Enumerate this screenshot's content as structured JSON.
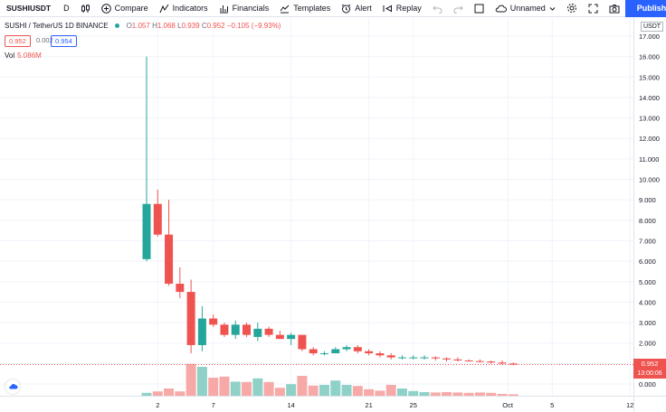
{
  "toolbar": {
    "symbol": "SUSHIUSDT",
    "interval": "D",
    "compare_label": "Compare",
    "indicators_label": "Indicators",
    "financials_label": "Financials",
    "templates_label": "Templates",
    "alert_label": "Alert",
    "replay_label": "Replay",
    "layout_name": "Unnamed",
    "publish_label": "Publish"
  },
  "legend": {
    "title": "SUSHI / TetherUS  1D  BINANCE",
    "o_label": "O",
    "o_value": "1.057",
    "h_label": "H",
    "h_value": "1.068",
    "l_label": "L",
    "l_value": "0.939",
    "c_label": "C",
    "c_value": "0.952",
    "change": "−0.105 (−9.93%)",
    "sell_price": "0.952",
    "spread": "0.002",
    "buy_price": "0.954",
    "vol_label": "Vol",
    "vol_value": "5.086M"
  },
  "price_axis": {
    "currency": "USDT",
    "current_price": "0.952",
    "countdown": "13:00:06"
  },
  "colors": {
    "up": "#26a69a",
    "down": "#ef5350",
    "up_volume": "#8fd1c7",
    "down_volume": "#f7a9a7",
    "grid": "#f0f3fa",
    "accent": "#2962ff"
  },
  "chart_data": {
    "type": "candlestick",
    "y_ticks": [
      0,
      1,
      2,
      3,
      4,
      5,
      6,
      7,
      8,
      9,
      10,
      11,
      12,
      13,
      14,
      15,
      16,
      17
    ],
    "y_tick_labels": [
      "0.000",
      "1.000",
      "2.000",
      "3.000",
      "4.000",
      "5.000",
      "6.000",
      "7.000",
      "8.000",
      "9.000",
      "10.000",
      "11.000",
      "12.000",
      "13.000",
      "14.000",
      "15.000",
      "16.000",
      "17.000"
    ],
    "ylim": [
      -0.6,
      17.5
    ],
    "x_ticks": [
      {
        "label": "2",
        "index": 2
      },
      {
        "label": "7",
        "index": 7
      },
      {
        "label": "14",
        "index": 14
      },
      {
        "label": "21",
        "index": 21
      },
      {
        "label": "25",
        "index": 25
      },
      {
        "label": "Oct",
        "index": 33.5
      },
      {
        "label": "5",
        "index": 37.5
      },
      {
        "label": "12",
        "index": 44.5
      }
    ],
    "candles": [
      {
        "i": 1,
        "o": 6.1,
        "h": 16.0,
        "l": 6.0,
        "c": 8.8,
        "v": 0.8
      },
      {
        "i": 2,
        "o": 8.8,
        "h": 9.5,
        "l": 7.2,
        "c": 7.3,
        "v": 1.2
      },
      {
        "i": 3,
        "o": 7.3,
        "h": 9.0,
        "l": 4.8,
        "c": 4.9,
        "v": 2.0
      },
      {
        "i": 4,
        "o": 4.9,
        "h": 5.7,
        "l": 4.2,
        "c": 4.5,
        "v": 1.2
      },
      {
        "i": 5,
        "o": 4.5,
        "h": 5.1,
        "l": 1.5,
        "c": 1.9,
        "v": 8.8
      },
      {
        "i": 6,
        "o": 1.9,
        "h": 3.8,
        "l": 1.6,
        "c": 3.2,
        "v": 8.0
      },
      {
        "i": 7,
        "o": 3.2,
        "h": 3.4,
        "l": 2.8,
        "c": 2.9,
        "v": 5.0
      },
      {
        "i": 8,
        "o": 2.9,
        "h": 3.0,
        "l": 2.3,
        "c": 2.4,
        "v": 5.3
      },
      {
        "i": 9,
        "o": 2.4,
        "h": 3.1,
        "l": 2.2,
        "c": 2.9,
        "v": 3.9
      },
      {
        "i": 10,
        "o": 2.9,
        "h": 3.0,
        "l": 2.3,
        "c": 2.4,
        "v": 3.8
      },
      {
        "i": 11,
        "o": 2.3,
        "h": 3.0,
        "l": 2.1,
        "c": 2.7,
        "v": 4.8
      },
      {
        "i": 12,
        "o": 2.7,
        "h": 2.8,
        "l": 2.3,
        "c": 2.4,
        "v": 3.8
      },
      {
        "i": 13,
        "o": 2.4,
        "h": 2.6,
        "l": 2.2,
        "c": 2.2,
        "v": 2.2
      },
      {
        "i": 14,
        "o": 2.2,
        "h": 2.5,
        "l": 1.9,
        "c": 2.4,
        "v": 3.2
      },
      {
        "i": 15,
        "o": 2.4,
        "h": 2.4,
        "l": 1.6,
        "c": 1.7,
        "v": 5.5
      },
      {
        "i": 16,
        "o": 1.7,
        "h": 1.8,
        "l": 1.4,
        "c": 1.5,
        "v": 2.8
      },
      {
        "i": 17,
        "o": 1.5,
        "h": 1.6,
        "l": 1.4,
        "c": 1.5,
        "v": 3.0
      },
      {
        "i": 18,
        "o": 1.5,
        "h": 1.8,
        "l": 1.5,
        "c": 1.7,
        "v": 4.2
      },
      {
        "i": 19,
        "o": 1.7,
        "h": 1.9,
        "l": 1.6,
        "c": 1.8,
        "v": 3.0
      },
      {
        "i": 20,
        "o": 1.8,
        "h": 1.9,
        "l": 1.5,
        "c": 1.6,
        "v": 2.7
      },
      {
        "i": 21,
        "o": 1.6,
        "h": 1.7,
        "l": 1.4,
        "c": 1.5,
        "v": 1.8
      },
      {
        "i": 22,
        "o": 1.5,
        "h": 1.6,
        "l": 1.3,
        "c": 1.4,
        "v": 1.4
      },
      {
        "i": 23,
        "o": 1.4,
        "h": 1.5,
        "l": 1.2,
        "c": 1.3,
        "v": 3.0
      },
      {
        "i": 24,
        "o": 1.3,
        "h": 1.4,
        "l": 1.2,
        "c": 1.3,
        "v": 2.0
      },
      {
        "i": 25,
        "o": 1.3,
        "h": 1.4,
        "l": 1.2,
        "c": 1.3,
        "v": 1.3
      },
      {
        "i": 26,
        "o": 1.3,
        "h": 1.4,
        "l": 1.2,
        "c": 1.3,
        "v": 1.0
      },
      {
        "i": 27,
        "o": 1.3,
        "h": 1.35,
        "l": 1.15,
        "c": 1.25,
        "v": 0.9
      },
      {
        "i": 28,
        "o": 1.25,
        "h": 1.3,
        "l": 1.1,
        "c": 1.2,
        "v": 1.0
      },
      {
        "i": 29,
        "o": 1.2,
        "h": 1.3,
        "l": 1.1,
        "c": 1.15,
        "v": 0.9
      },
      {
        "i": 30,
        "o": 1.15,
        "h": 1.2,
        "l": 1.1,
        "c": 1.12,
        "v": 0.8
      },
      {
        "i": 31,
        "o": 1.12,
        "h": 1.2,
        "l": 1.05,
        "c": 1.1,
        "v": 0.9
      },
      {
        "i": 32,
        "o": 1.1,
        "h": 1.15,
        "l": 1.0,
        "c": 1.05,
        "v": 0.8
      },
      {
        "i": 33,
        "o": 1.05,
        "h": 1.15,
        "l": 0.95,
        "c": 1.0,
        "v": 0.5
      },
      {
        "i": 34,
        "o": 1.0,
        "h": 1.05,
        "l": 0.92,
        "c": 0.95,
        "v": 0.4
      }
    ],
    "volume_ylim": [
      0,
      10
    ]
  }
}
